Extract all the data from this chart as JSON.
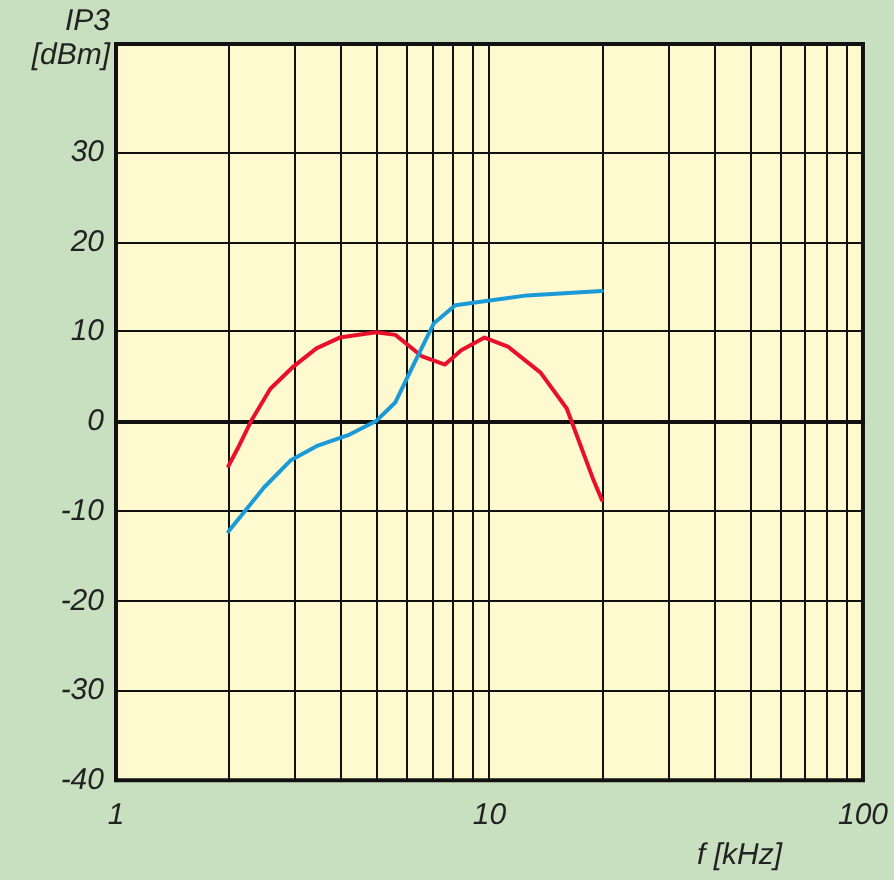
{
  "chart_data": {
    "type": "line",
    "xlabel": "f [kHz]",
    "ylabel": "IP3\n[dBm]",
    "log": "x",
    "grid": true,
    "marker": "none",
    "line_style": "solid",
    "xlim": [
      1,
      100
    ],
    "ylim": [
      -40,
      42
    ],
    "xticks": [
      1,
      {
        "value": 2,
        "label": null
      },
      {
        "value": 3,
        "label": null
      },
      {
        "value": 4,
        "label": null
      },
      {
        "value": 5,
        "label": null
      },
      {
        "value": 6,
        "label": null
      },
      {
        "value": 7,
        "label": null
      },
      {
        "value": 8,
        "label": null
      },
      {
        "value": 9,
        "label": null
      },
      10,
      {
        "value": 20,
        "label": null
      },
      {
        "value": 30,
        "label": null
      },
      {
        "value": 40,
        "label": null
      },
      {
        "value": 50,
        "label": null
      },
      {
        "value": 60,
        "label": null
      },
      {
        "value": 70,
        "label": null
      },
      {
        "value": 80,
        "label": null
      },
      {
        "value": 90,
        "label": null
      },
      100
    ],
    "yticks": [
      -40,
      -30,
      -20,
      -10,
      0,
      10,
      20,
      30
    ],
    "series": [
      {
        "color": "#e8102a",
        "x": [
          2,
          2.12,
          2.3,
          2.59,
          2.99,
          3.44,
          3.97,
          4.97,
          5.6,
          6.6,
          7.6,
          8.4,
          9.7,
          11.2,
          13.7,
          16.1,
          19,
          20
        ],
        "values": [
          -5,
          -3,
          0,
          3.6,
          6.1,
          8.1,
          9.3,
          9.9,
          9.6,
          7.2,
          6.3,
          7.9,
          9.3,
          8.3,
          5.4,
          1.4,
          -6.6,
          -8.8
        ]
      },
      {
        "color": "#1a9ad6",
        "x": [
          2,
          2.49,
          2.93,
          3.44,
          4.22,
          4.97,
          5.6,
          6.3,
          7.1,
          8.1,
          9.9,
          12.6,
          20
        ],
        "values": [
          -12.3,
          -7.4,
          -4.4,
          -2.8,
          -1.5,
          0,
          2.1,
          6.5,
          10.9,
          12.9,
          13.4,
          14,
          14.5
        ]
      }
    ]
  }
}
